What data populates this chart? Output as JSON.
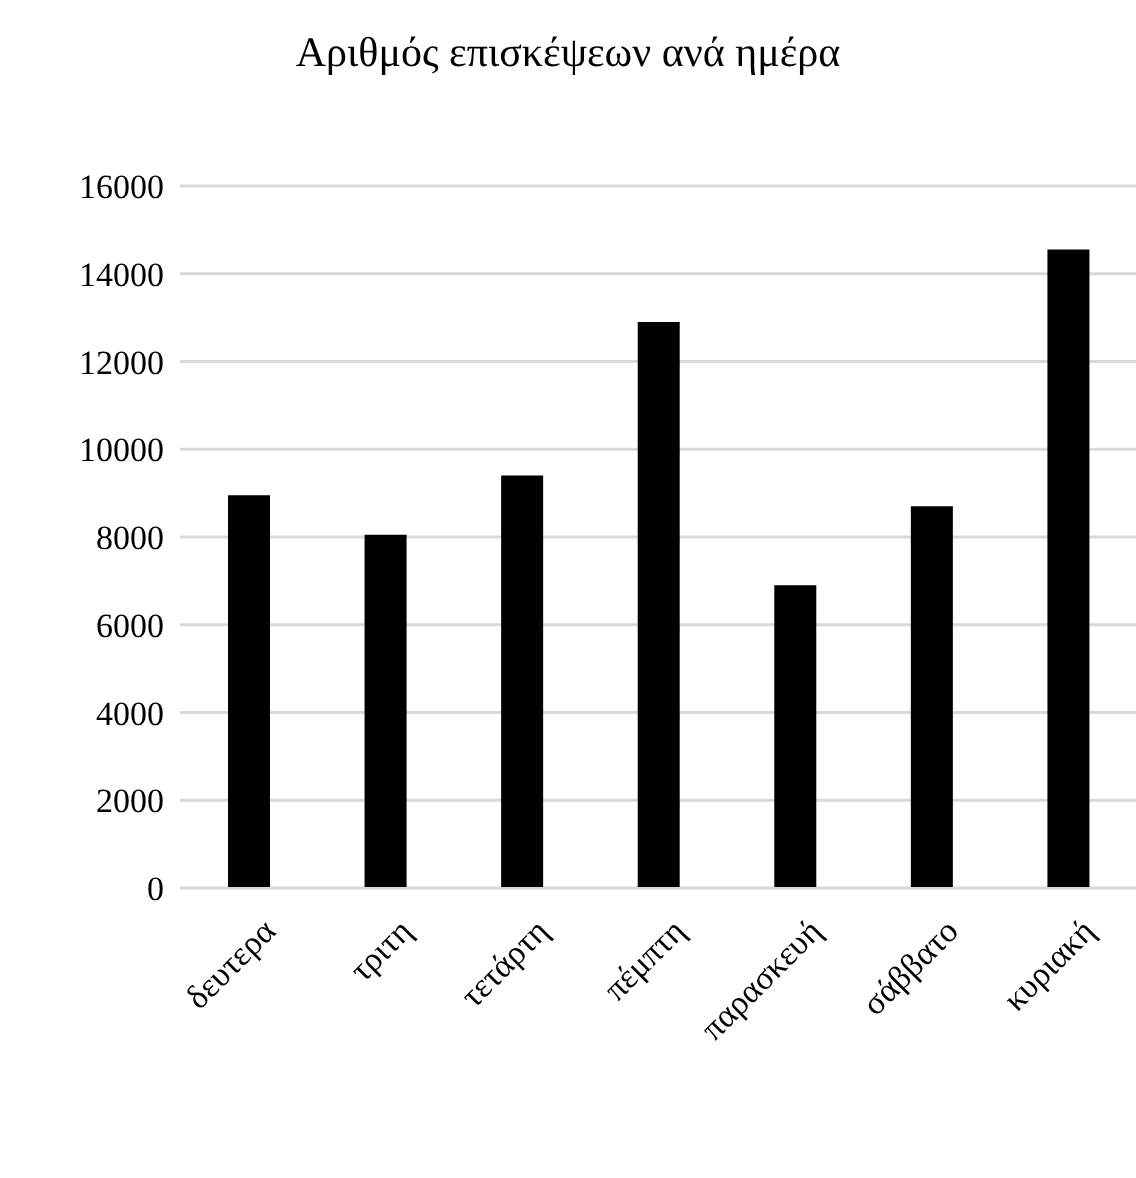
{
  "chart_data": {
    "type": "bar",
    "title": "Αριθμός επισκέψεων ανά ημέρα",
    "categories": [
      "δευτερα",
      "τριτη",
      "τετάρτη",
      "πέμπτη",
      "παρασκευή",
      "σάββατο",
      "κυριακή"
    ],
    "values": [
      8950,
      8050,
      9400,
      12900,
      6900,
      8700,
      14550
    ],
    "color": "#000000",
    "ylim": [
      0,
      16000
    ],
    "yticks": [
      0,
      2000,
      4000,
      6000,
      8000,
      10000,
      12000,
      14000,
      16000
    ],
    "grid": "y"
  }
}
